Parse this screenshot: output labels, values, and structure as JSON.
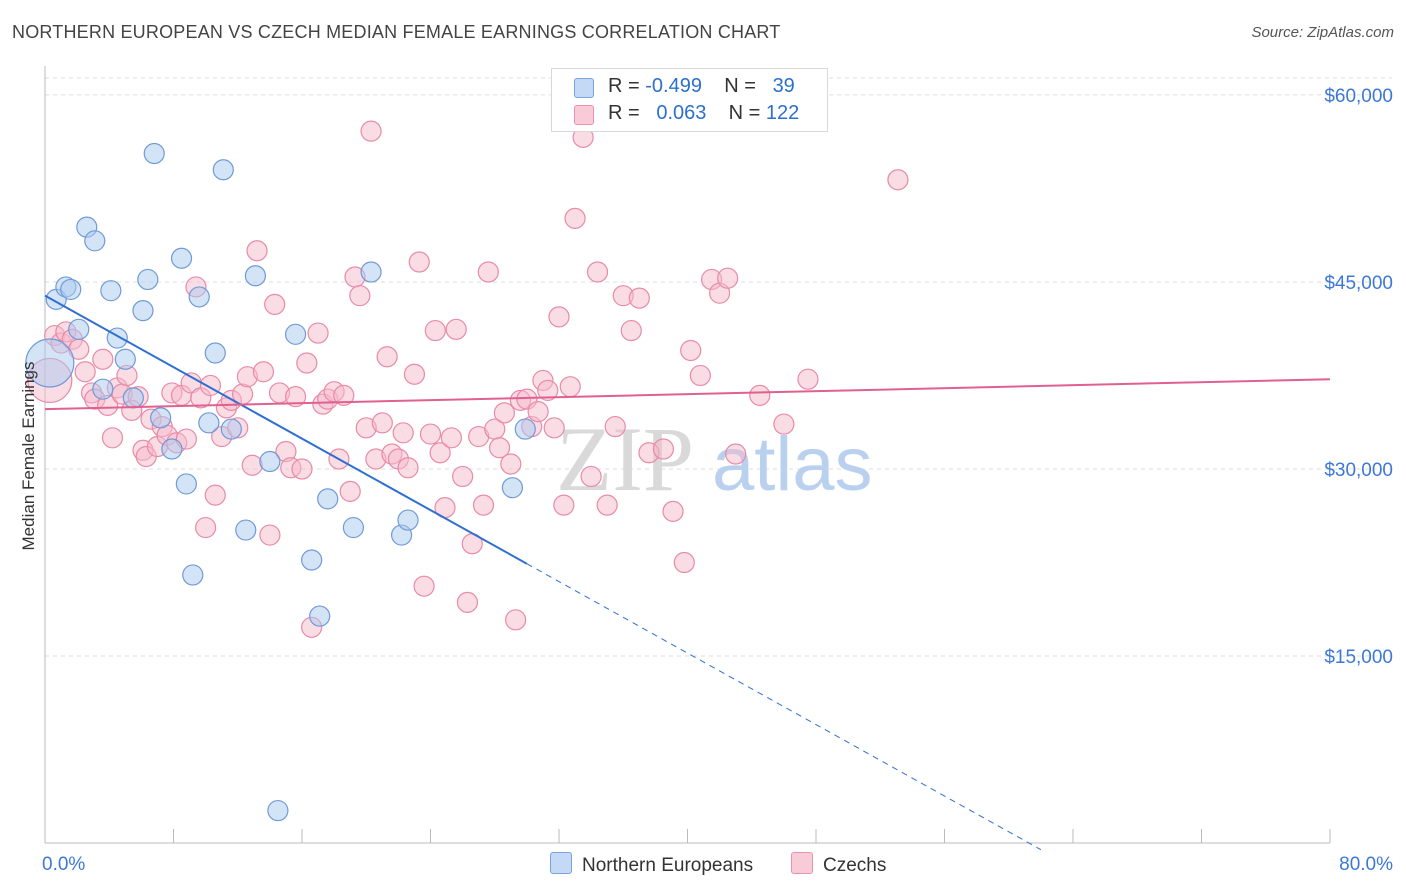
{
  "header": {
    "title": "NORTHERN EUROPEAN VS CZECH MEDIAN FEMALE EARNINGS CORRELATION CHART",
    "source": "Source: ZipAtlas.com"
  },
  "legend": {
    "row1": {
      "r_label": "R =",
      "r_value": "-0.499",
      "n_label": "N =",
      "n_value": "39"
    },
    "row2": {
      "r_label": "R =",
      "r_value": "0.063",
      "n_label": "N =",
      "n_value": "122"
    }
  },
  "bottom_legend": {
    "series1": "Northern Europeans",
    "series2": "Czechs"
  },
  "watermark": {
    "part1": "ZIP",
    "part2": "atlas"
  },
  "colors": {
    "blue_fill": "#a9c9f0",
    "blue_stroke": "#6f9ad6",
    "blue_line": "#2f6fd1",
    "pink_fill": "#f6b9cb",
    "pink_stroke": "#e88aa8",
    "pink_line": "#e06090",
    "tick_label": "#3d78d8",
    "grid": "#dddddd"
  },
  "chart_data": {
    "type": "scatter",
    "title": "NORTHERN EUROPEAN VS CZECH MEDIAN FEMALE EARNINGS CORRELATION CHART",
    "xlabel": "",
    "ylabel": "Median Female Earnings",
    "xlim": [
      0,
      80
    ],
    "ylim": [
      0,
      62000
    ],
    "x_tick_labels": [
      "0.0%",
      "80.0%"
    ],
    "y_ticks": [
      15000,
      30000,
      45000,
      60000
    ],
    "y_tick_labels": [
      "$15,000",
      "$30,000",
      "$45,000",
      "$60,000"
    ],
    "series": [
      {
        "name": "Northern Europeans",
        "r": -0.499,
        "n": 39,
        "trend": {
          "x0": 0,
          "y0": 43900,
          "x1": 30,
          "y1": 22400,
          "dash_to_x": 62
        },
        "points": [
          [
            0.3,
            38500,
            24
          ],
          [
            0.7,
            43600,
            10
          ],
          [
            1.3,
            44600,
            10
          ],
          [
            1.6,
            44400,
            10
          ],
          [
            2.1,
            41200,
            10
          ],
          [
            2.6,
            49400,
            10
          ],
          [
            3.1,
            48300,
            10
          ],
          [
            3.6,
            36400,
            10
          ],
          [
            4.1,
            44300,
            10
          ],
          [
            4.5,
            40500,
            10
          ],
          [
            5.0,
            38800,
            10
          ],
          [
            5.5,
            35700,
            10
          ],
          [
            6.1,
            42700,
            10
          ],
          [
            6.4,
            45200,
            10
          ],
          [
            6.8,
            55300,
            10
          ],
          [
            7.2,
            34100,
            10
          ],
          [
            7.9,
            31600,
            10
          ],
          [
            8.5,
            46900,
            10
          ],
          [
            8.8,
            28800,
            10
          ],
          [
            9.2,
            21500,
            10
          ],
          [
            9.6,
            43800,
            10
          ],
          [
            10.2,
            33700,
            10
          ],
          [
            10.6,
            39300,
            10
          ],
          [
            11.1,
            54000,
            10
          ],
          [
            11.6,
            33200,
            10
          ],
          [
            12.5,
            25100,
            10
          ],
          [
            13.1,
            45500,
            10
          ],
          [
            14.0,
            30600,
            10
          ],
          [
            14.5,
            2600,
            10
          ],
          [
            15.6,
            40800,
            10
          ],
          [
            16.6,
            22700,
            10
          ],
          [
            17.1,
            18200,
            10
          ],
          [
            17.6,
            27600,
            10
          ],
          [
            19.2,
            25300,
            10
          ],
          [
            20.3,
            45800,
            10
          ],
          [
            22.2,
            24700,
            10
          ],
          [
            22.6,
            25900,
            10
          ],
          [
            29.1,
            28500,
            10
          ],
          [
            29.9,
            33200,
            10
          ]
        ]
      },
      {
        "name": "Czechs",
        "r": 0.063,
        "n": 122,
        "trend": {
          "x0": 0,
          "y0": 34800,
          "x1": 80,
          "y1": 37200
        },
        "points": [
          [
            0.3,
            37100,
            22
          ],
          [
            0.6,
            40700,
            10
          ],
          [
            1.0,
            40100,
            10
          ],
          [
            1.3,
            41000,
            10
          ],
          [
            1.7,
            40400,
            10
          ],
          [
            2.1,
            39600,
            10
          ],
          [
            2.5,
            37800,
            10
          ],
          [
            2.9,
            36100,
            10
          ],
          [
            3.1,
            35600,
            10
          ],
          [
            3.6,
            38800,
            10
          ],
          [
            3.9,
            35100,
            10
          ],
          [
            4.2,
            32500,
            10
          ],
          [
            4.5,
            36500,
            10
          ],
          [
            4.8,
            36000,
            10
          ],
          [
            5.1,
            37500,
            10
          ],
          [
            5.4,
            34700,
            10
          ],
          [
            5.8,
            35800,
            10
          ],
          [
            6.1,
            31500,
            10
          ],
          [
            6.3,
            31000,
            10
          ],
          [
            6.6,
            34000,
            10
          ],
          [
            7.0,
            31800,
            10
          ],
          [
            7.3,
            33400,
            10
          ],
          [
            7.6,
            32700,
            10
          ],
          [
            7.9,
            36100,
            10
          ],
          [
            8.2,
            32100,
            10
          ],
          [
            8.5,
            35900,
            10
          ],
          [
            8.8,
            32400,
            10
          ],
          [
            9.1,
            36900,
            10
          ],
          [
            9.4,
            44600,
            10
          ],
          [
            9.7,
            35700,
            10
          ],
          [
            10.0,
            25300,
            10
          ],
          [
            10.3,
            36700,
            10
          ],
          [
            10.6,
            27900,
            10
          ],
          [
            11.0,
            32600,
            10
          ],
          [
            11.3,
            34900,
            10
          ],
          [
            11.6,
            35500,
            10
          ],
          [
            12.0,
            33300,
            10
          ],
          [
            12.3,
            36000,
            10
          ],
          [
            12.6,
            37400,
            10
          ],
          [
            12.9,
            30300,
            10
          ],
          [
            13.2,
            47500,
            10
          ],
          [
            13.6,
            37800,
            10
          ],
          [
            14.0,
            24700,
            10
          ],
          [
            14.3,
            43200,
            10
          ],
          [
            14.6,
            36100,
            10
          ],
          [
            15.0,
            31400,
            10
          ],
          [
            15.3,
            30100,
            10
          ],
          [
            15.6,
            35800,
            10
          ],
          [
            16.0,
            30000,
            10
          ],
          [
            16.3,
            38500,
            10
          ],
          [
            16.6,
            17300,
            10
          ],
          [
            17.0,
            40900,
            10
          ],
          [
            17.3,
            35200,
            10
          ],
          [
            17.6,
            35600,
            10
          ],
          [
            18.0,
            36200,
            10
          ],
          [
            18.3,
            30800,
            10
          ],
          [
            18.6,
            35900,
            10
          ],
          [
            19.0,
            28200,
            10
          ],
          [
            19.3,
            45400,
            10
          ],
          [
            19.6,
            43900,
            10
          ],
          [
            20.0,
            33300,
            10
          ],
          [
            20.3,
            57100,
            10
          ],
          [
            20.6,
            30800,
            10
          ],
          [
            21.0,
            33700,
            10
          ],
          [
            21.3,
            39000,
            10
          ],
          [
            21.6,
            31200,
            10
          ],
          [
            22.0,
            30800,
            10
          ],
          [
            22.3,
            32900,
            10
          ],
          [
            22.6,
            30100,
            10
          ],
          [
            23.0,
            37600,
            10
          ],
          [
            23.3,
            46600,
            10
          ],
          [
            23.6,
            20600,
            10
          ],
          [
            24.0,
            32800,
            10
          ],
          [
            24.3,
            41100,
            10
          ],
          [
            24.6,
            31300,
            10
          ],
          [
            24.9,
            26900,
            10
          ],
          [
            25.3,
            32500,
            10
          ],
          [
            25.6,
            41200,
            10
          ],
          [
            26.0,
            29400,
            10
          ],
          [
            26.3,
            19300,
            10
          ],
          [
            26.6,
            24000,
            10
          ],
          [
            27.0,
            32600,
            10
          ],
          [
            27.3,
            27100,
            10
          ],
          [
            27.6,
            45800,
            10
          ],
          [
            28.0,
            33200,
            10
          ],
          [
            28.3,
            31700,
            10
          ],
          [
            28.6,
            34500,
            10
          ],
          [
            29.0,
            30400,
            10
          ],
          [
            29.3,
            17900,
            10
          ],
          [
            29.6,
            35500,
            10
          ],
          [
            30.0,
            35600,
            10
          ],
          [
            30.3,
            33400,
            10
          ],
          [
            30.7,
            34600,
            10
          ],
          [
            31.0,
            37100,
            10
          ],
          [
            31.3,
            36300,
            10
          ],
          [
            31.7,
            33300,
            10
          ],
          [
            32.0,
            42200,
            10
          ],
          [
            32.3,
            27100,
            10
          ],
          [
            32.7,
            36600,
            10
          ],
          [
            33.0,
            50100,
            10
          ],
          [
            33.5,
            56600,
            10
          ],
          [
            34.0,
            29400,
            10
          ],
          [
            34.4,
            45800,
            10
          ],
          [
            35.0,
            27100,
            10
          ],
          [
            35.5,
            33400,
            10
          ],
          [
            36.0,
            43900,
            10
          ],
          [
            36.5,
            41100,
            10
          ],
          [
            37.0,
            43700,
            10
          ],
          [
            37.6,
            31300,
            10
          ],
          [
            38.5,
            31600,
            10
          ],
          [
            39.1,
            26600,
            10
          ],
          [
            39.8,
            22500,
            10
          ],
          [
            40.2,
            39500,
            10
          ],
          [
            40.8,
            37500,
            10
          ],
          [
            41.5,
            45200,
            10
          ],
          [
            42.0,
            44100,
            10
          ],
          [
            42.5,
            45300,
            10
          ],
          [
            43.0,
            31200,
            10
          ],
          [
            44.5,
            35900,
            10
          ],
          [
            46.0,
            33600,
            10
          ],
          [
            47.5,
            37200,
            10
          ],
          [
            53.1,
            53200,
            10
          ]
        ]
      }
    ]
  }
}
